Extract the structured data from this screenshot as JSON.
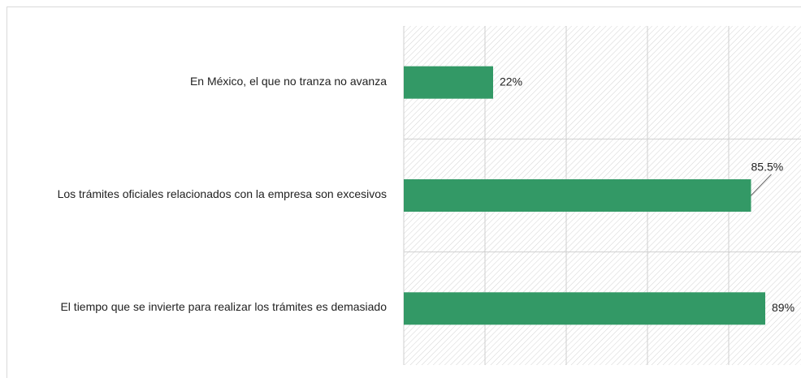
{
  "chart_data": {
    "type": "bar",
    "orientation": "horizontal",
    "categories": [
      "En México, el que no tranza no avanza",
      "Los trámites oficiales relacionados con la empresa son excesivos",
      "El tiempo que se invierte para realizar los trámites es demasiado"
    ],
    "values": [
      22,
      85.5,
      89
    ],
    "value_labels": [
      "22%",
      "85.5%",
      "89%"
    ],
    "color": "#339966",
    "xlim": [
      0,
      100
    ],
    "xticks": [
      0,
      20,
      40,
      60,
      80,
      100
    ],
    "grid": true
  }
}
